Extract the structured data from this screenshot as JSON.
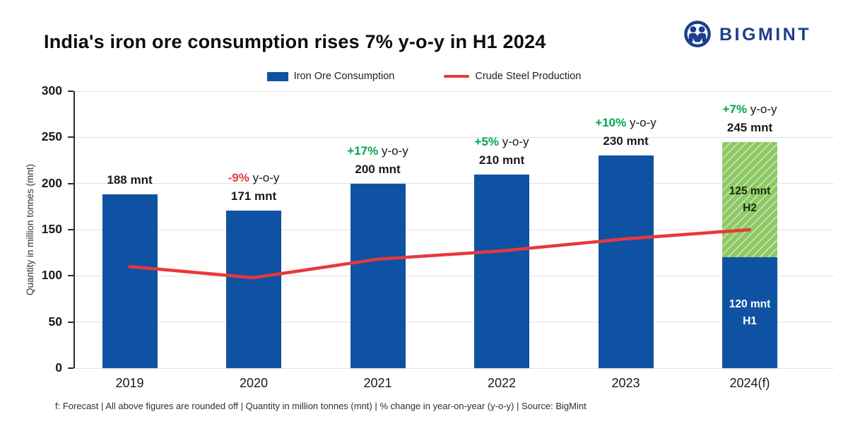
{
  "header": {
    "title": "India's iron ore consumption rises 7% y-o-y in H1 2024",
    "brand": "BIGMINT"
  },
  "legend": {
    "bar_label": "Iron Ore Consumption",
    "line_label": "Crude Steel Production"
  },
  "colors": {
    "bar_blue": "#0F52A3",
    "forecast_green": "#8DC964",
    "line_red": "#E8383A",
    "yoy_positive": "#00A64F",
    "yoy_negative": "#E8383A",
    "brand_navy": "#1E3D8F"
  },
  "chart_data": {
    "type": "bar",
    "title": "India's iron ore consumption rises 7% y-o-y in H1 2024",
    "categories": [
      "2019",
      "2020",
      "2021",
      "2022",
      "2023",
      "2024(f)"
    ],
    "series": [
      {
        "name": "Iron Ore Consumption",
        "type": "bar",
        "color_key": "bar_blue",
        "values": [
          188,
          171,
          200,
          210,
          230,
          null
        ]
      },
      {
        "name": "Iron Ore Consumption H1 2024",
        "type": "bar",
        "color_key": "bar_blue",
        "values": [
          null,
          null,
          null,
          null,
          null,
          120
        ],
        "in_bar_label": [
          "120 mnt",
          "H1"
        ],
        "label_color": "#FFFFFF"
      },
      {
        "name": "Iron Ore Consumption H2 2024 (forecast)",
        "type": "bar",
        "color_key": "forecast_green",
        "hatched": true,
        "values": [
          null,
          null,
          null,
          null,
          null,
          125
        ],
        "in_bar_label": [
          "125 mnt",
          "H2"
        ],
        "label_color": "#1B2A10"
      },
      {
        "name": "Crude Steel Production",
        "type": "line",
        "color_key": "line_red",
        "values": [
          110,
          98,
          118,
          127,
          140,
          150
        ]
      }
    ],
    "bar_totals_labels": [
      "188 mnt",
      "171 mnt",
      "200 mnt",
      "210 mnt",
      "230 mnt",
      "245 mnt"
    ],
    "yoy_changes": [
      null,
      "-9%",
      "+17%",
      "+5%",
      "+10%",
      "+7%"
    ],
    "yoy_suffix": " y-o-y",
    "ylabel": "Quantity in million tonnes (mnt)",
    "ylim": [
      0,
      300
    ],
    "yticks": [
      0,
      50,
      100,
      150,
      200,
      250,
      300
    ],
    "grid": true,
    "legend_position": "top"
  },
  "footer": {
    "note": "f: Forecast | All above figures are rounded off | Quantity in million tonnes (mnt) | % change in year-on-year (y-o-y) | Source: BigMint"
  }
}
